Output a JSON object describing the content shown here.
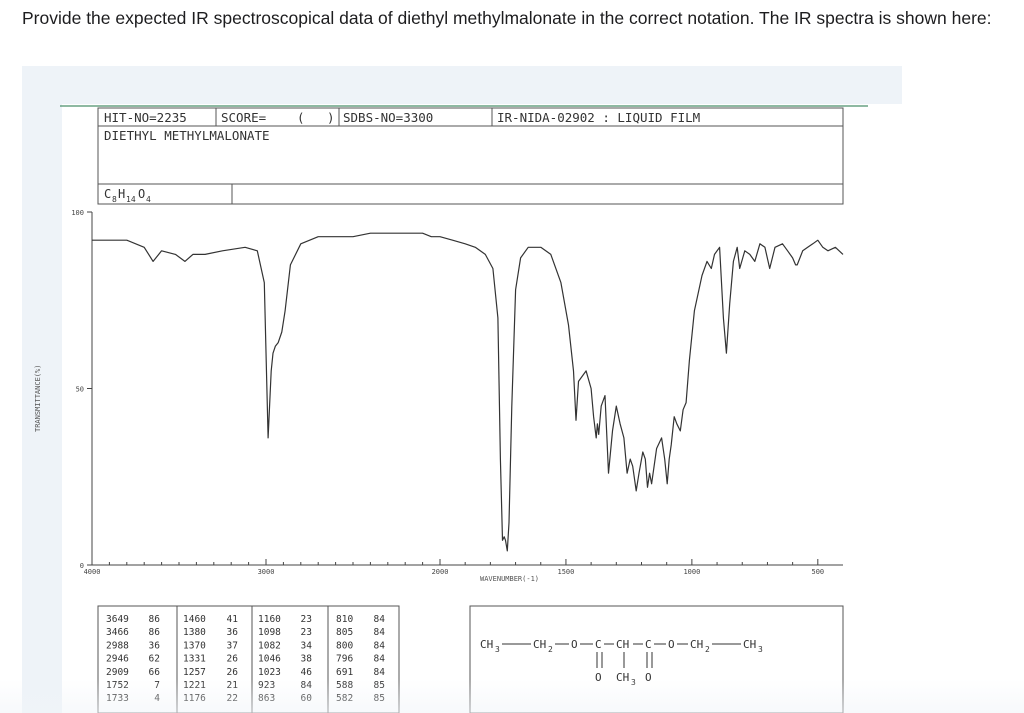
{
  "question": {
    "text": "Provide the expected IR spectroscopical data of diethyl methylmalonate in the correct notation. The IR spectra is shown here:"
  },
  "spectrum_header": {
    "hit_no": "HIT-NO=2235",
    "score": "SCORE=",
    "score_paren": "(",
    "sdbs_paren": ")",
    "sdbs_no": "SDBS-NO=3300",
    "ir_nida": "IR-NIDA-02902 : LIQUID FILM",
    "compound_name": "DIETHYL METHYLMALONATE",
    "formula_c": "C",
    "formula_c_sub": "8",
    "formula_h": "H",
    "formula_h_sub": "14",
    "formula_o": "O",
    "formula_o_sub": "4"
  },
  "structure": {
    "ch3_left": "CH",
    "ch3_left_sub": "3",
    "dash1": "—",
    "ch2_left": "CH",
    "ch2_left_sub": "2",
    "o_left": "O",
    "c_left": "C",
    "ch": "CH",
    "c_right": "C",
    "o_right": "O",
    "ch2_right": "CH",
    "ch2_right_sub": "2",
    "ch3_right": "CH",
    "ch3_right_sub": "3",
    "o_dbl_left": "O",
    "methyl": "CH",
    "methyl_sub": "3",
    "o_dbl_right": "O"
  },
  "peak_table": {
    "columns": [
      [
        [
          "3649",
          "86"
        ],
        [
          "3466",
          "86"
        ],
        [
          "2988",
          "36"
        ],
        [
          "2946",
          "62"
        ],
        [
          "2909",
          "66"
        ],
        [
          "1752",
          "7"
        ],
        [
          "1733",
          "4"
        ]
      ],
      [
        [
          "1460",
          "41"
        ],
        [
          "1380",
          "36"
        ],
        [
          "1370",
          "37"
        ],
        [
          "1331",
          "26"
        ],
        [
          "1257",
          "26"
        ],
        [
          "1221",
          "21"
        ],
        [
          "1176",
          "22"
        ]
      ],
      [
        [
          "1160",
          "23"
        ],
        [
          "1098",
          "23"
        ],
        [
          "1082",
          "34"
        ],
        [
          "1046",
          "38"
        ],
        [
          "1023",
          "46"
        ],
        [
          "923",
          "84"
        ],
        [
          "863",
          "60"
        ]
      ],
      [
        [
          "810",
          "84"
        ],
        [
          "805",
          "84"
        ],
        [
          "800",
          "84"
        ],
        [
          "796",
          "84"
        ],
        [
          "691",
          "84"
        ],
        [
          "588",
          "85"
        ],
        [
          "582",
          "85"
        ]
      ]
    ]
  },
  "chart_data": {
    "type": "line",
    "title": "",
    "xlabel": "WAVENUMBER(-1)",
    "ylabel": "TRANSMITTANCE(%)",
    "xlim": [
      4000,
      400
    ],
    "ylim": [
      0,
      100
    ],
    "x_ticks": [
      {
        "value": 4000,
        "label": "4000"
      },
      {
        "value": 3000,
        "label": "3000"
      },
      {
        "value": 2000,
        "label": "2000"
      },
      {
        "value": 1500,
        "label": "1500"
      },
      {
        "value": 1000,
        "label": "1000"
      },
      {
        "value": 500,
        "label": "500"
      }
    ],
    "y_ticks": [
      {
        "value": 100,
        "label": "100"
      },
      {
        "value": 50,
        "label": "50"
      },
      {
        "value": 0,
        "label": "0"
      }
    ],
    "grid": false,
    "series": [
      {
        "color": "#333333",
        "x": [
          4000,
          3800,
          3700,
          3649,
          3600,
          3520,
          3466,
          3420,
          3350,
          3250,
          3120,
          3050,
          3010,
          2988,
          2970,
          2960,
          2946,
          2930,
          2909,
          2890,
          2860,
          2800,
          2700,
          2600,
          2500,
          2400,
          2300,
          2200,
          2100,
          2050,
          2000,
          1950,
          1900,
          1860,
          1820,
          1790,
          1770,
          1760,
          1752,
          1745,
          1740,
          1733,
          1726,
          1715,
          1700,
          1680,
          1650,
          1600,
          1560,
          1520,
          1490,
          1470,
          1460,
          1450,
          1420,
          1400,
          1390,
          1380,
          1375,
          1370,
          1360,
          1345,
          1331,
          1315,
          1300,
          1285,
          1270,
          1257,
          1245,
          1235,
          1221,
          1210,
          1195,
          1185,
          1176,
          1168,
          1160,
          1140,
          1120,
          1108,
          1098,
          1090,
          1082,
          1070,
          1060,
          1046,
          1035,
          1023,
          1010,
          990,
          960,
          940,
          923,
          910,
          890,
          875,
          863,
          850,
          835,
          820,
          810,
          790,
          770,
          750,
          730,
          710,
          691,
          670,
          640,
          620,
          600,
          588,
          582,
          560,
          540,
          520,
          500,
          480,
          460,
          430,
          400
        ],
        "y": [
          92,
          92,
          90,
          86,
          89,
          88,
          86,
          88,
          88,
          89,
          90,
          89,
          80,
          36,
          55,
          60,
          62,
          63,
          66,
          72,
          85,
          91,
          93,
          93,
          93,
          94,
          94,
          94,
          94,
          93,
          93,
          92,
          91,
          90,
          88,
          84,
          70,
          30,
          7,
          8,
          7,
          4,
          12,
          45,
          78,
          87,
          90,
          90,
          88,
          80,
          68,
          55,
          41,
          52,
          55,
          50,
          42,
          36,
          40,
          37,
          45,
          48,
          26,
          38,
          45,
          40,
          36,
          26,
          30,
          28,
          21,
          26,
          32,
          30,
          22,
          26,
          23,
          33,
          36,
          30,
          23,
          30,
          34,
          42,
          40,
          38,
          44,
          46,
          58,
          72,
          82,
          86,
          84,
          88,
          90,
          70,
          60,
          74,
          86,
          90,
          84,
          89,
          88,
          86,
          91,
          90,
          84,
          90,
          91,
          89,
          87,
          85,
          85,
          89,
          90,
          91,
          92,
          90,
          89,
          90,
          88
        ]
      }
    ]
  }
}
